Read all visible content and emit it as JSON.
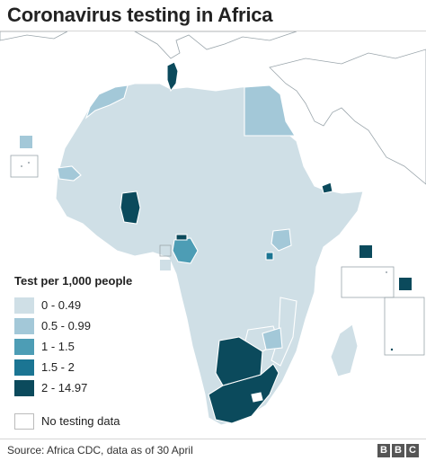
{
  "title": "Coronavirus testing in Africa",
  "legend": {
    "title": "Test per 1,000 people",
    "bins": [
      {
        "label": "0 - 0.49",
        "color": "#cfdfe6"
      },
      {
        "label": "0.5 - 0.99",
        "color": "#a3c8d8"
      },
      {
        "label": "1 - 1.5",
        "color": "#4d9db5"
      },
      {
        "label": "1.5 - 2",
        "color": "#1b7593"
      },
      {
        "label": "2 - 14.97",
        "color": "#0b4a5c"
      }
    ],
    "nodata_label": "No testing data"
  },
  "colors": {
    "no_data": "#ffffff",
    "outside": "#ffffff",
    "border": "#ffffff",
    "outline": "#9aa5ab"
  },
  "footer": {
    "source": "Source: Africa CDC, data as of 30 April",
    "logo_letters": [
      "B",
      "B",
      "C"
    ]
  }
}
